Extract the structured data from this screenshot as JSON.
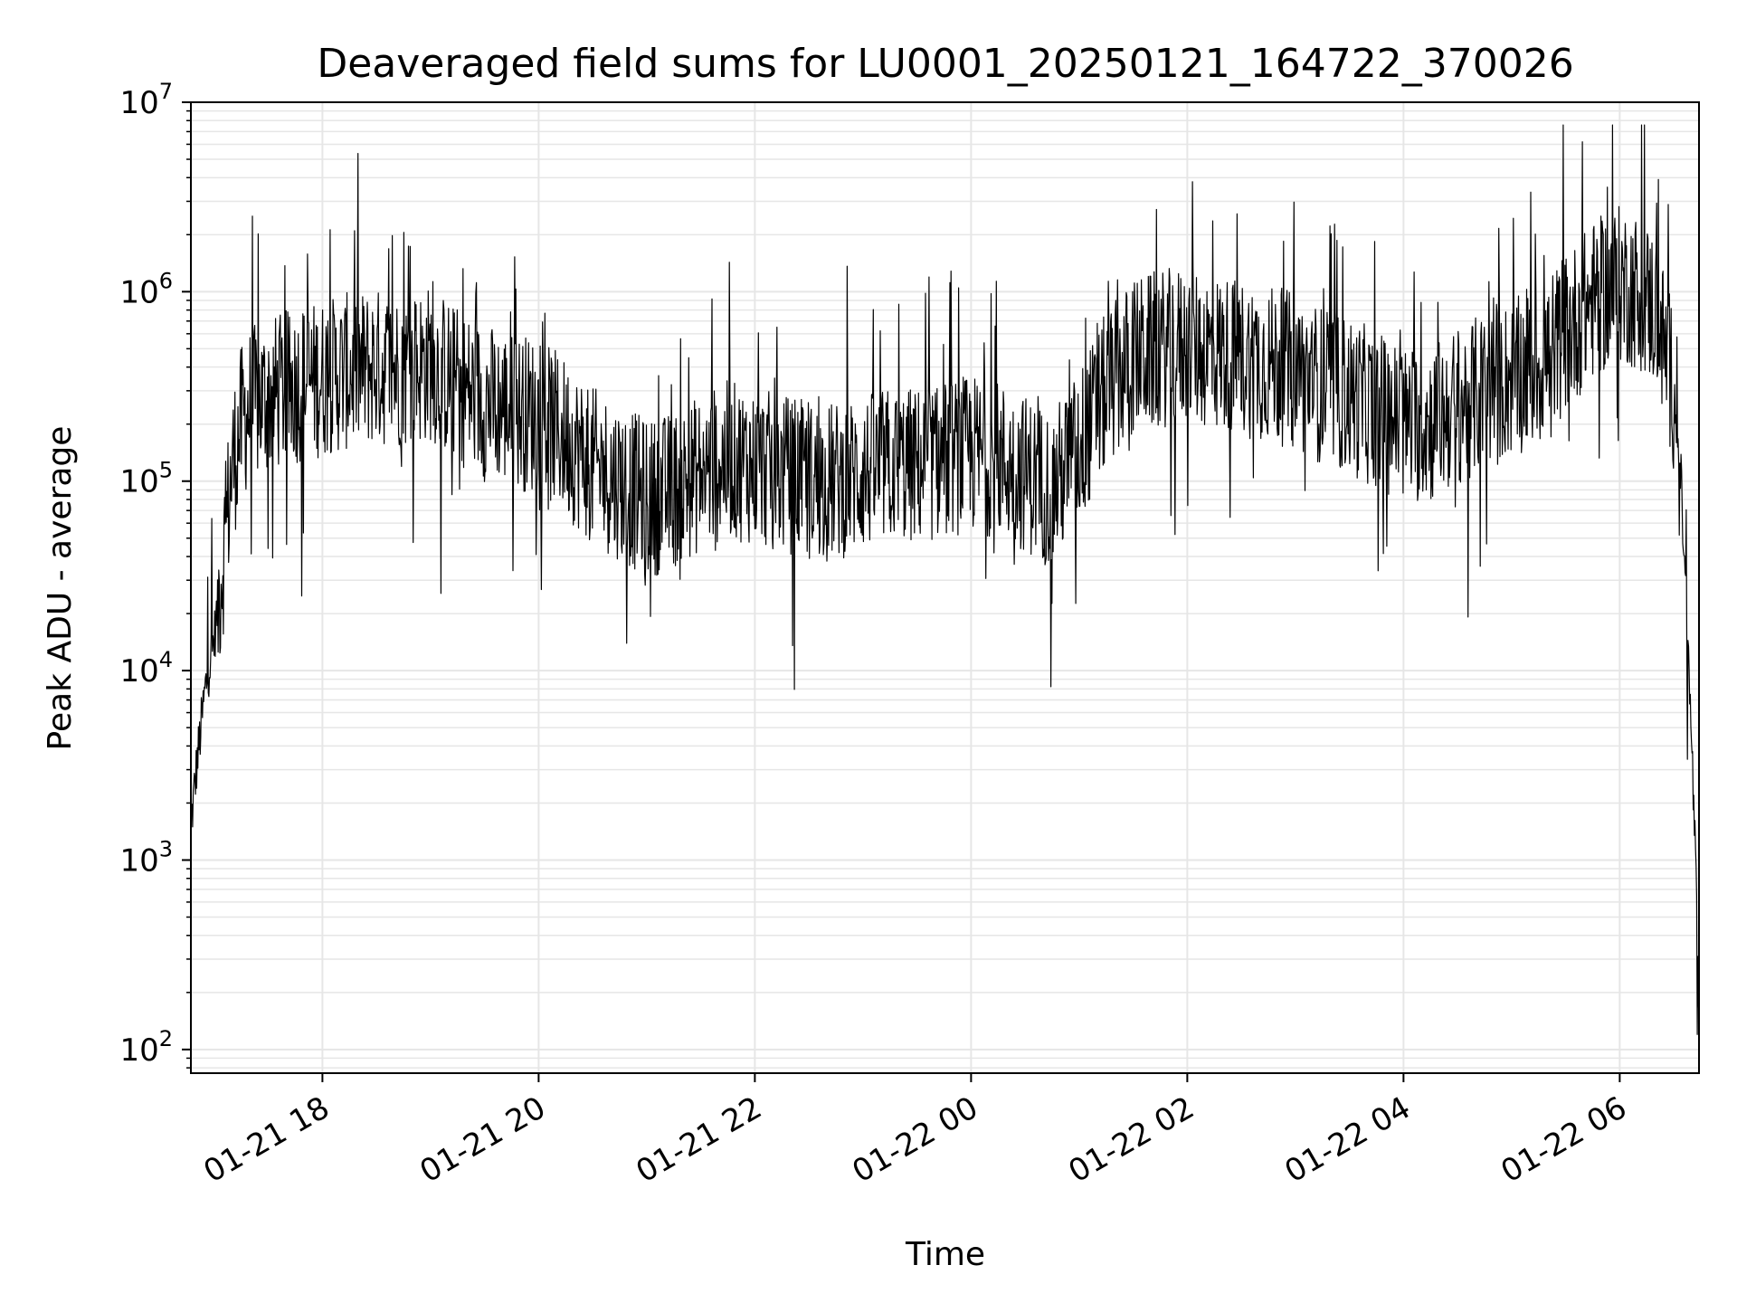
{
  "chart_data": {
    "type": "line",
    "title": "Deaveraged field sums for LU0001_20250121_164722_370026",
    "xlabel": "Time",
    "ylabel": "Peak ADU - average",
    "yscale": "log",
    "ylim": [
      75,
      10000000
    ],
    "xlim": [
      "2025-01-21 16:47",
      "2025-01-22 06:44"
    ],
    "grid": true,
    "line_color": "#000000",
    "grid_color": "#e6e6e6",
    "x_ticks": [
      {
        "value": "2025-01-21 18:00",
        "label": "01-21 18"
      },
      {
        "value": "2025-01-21 20:00",
        "label": "01-21 20"
      },
      {
        "value": "2025-01-21 22:00",
        "label": "01-21 22"
      },
      {
        "value": "2025-01-22 00:00",
        "label": "01-22 00"
      },
      {
        "value": "2025-01-22 02:00",
        "label": "01-22 02"
      },
      {
        "value": "2025-01-22 04:00",
        "label": "01-22 04"
      },
      {
        "value": "2025-01-22 06:00",
        "label": "01-22 06"
      }
    ],
    "y_ticks": [
      {
        "value": 100,
        "base": "10",
        "exp": "2"
      },
      {
        "value": 1000,
        "base": "10",
        "exp": "3"
      },
      {
        "value": 10000,
        "base": "10",
        "exp": "4"
      },
      {
        "value": 100000,
        "base": "10",
        "exp": "5"
      },
      {
        "value": 1000000,
        "base": "10",
        "exp": "6"
      },
      {
        "value": 10000000,
        "base": "10",
        "exp": "7"
      }
    ],
    "series": [
      {
        "x": [
          "2025-01-21 16:47",
          "2025-01-21 16:50",
          "2025-01-21 16:55",
          "2025-01-21 17:00",
          "2025-01-21 17:05",
          "2025-01-21 17:10",
          "2025-01-21 17:15",
          "2025-01-21 17:20",
          "2025-01-21 17:30",
          "2025-01-21 17:45",
          "2025-01-21 18:00",
          "2025-01-21 18:15",
          "2025-01-21 18:30",
          "2025-01-21 18:45",
          "2025-01-21 19:00",
          "2025-01-21 19:15",
          "2025-01-21 19:30",
          "2025-01-21 19:45",
          "2025-01-21 20:00",
          "2025-01-21 20:15",
          "2025-01-21 20:30",
          "2025-01-21 20:45",
          "2025-01-21 21:00",
          "2025-01-21 21:15",
          "2025-01-21 21:30",
          "2025-01-21 21:45",
          "2025-01-21 22:00",
          "2025-01-21 22:15",
          "2025-01-21 22:30",
          "2025-01-21 22:45",
          "2025-01-21 23:00",
          "2025-01-21 23:15",
          "2025-01-21 23:30",
          "2025-01-21 23:45",
          "2025-01-22 00:00",
          "2025-01-22 00:15",
          "2025-01-22 00:30",
          "2025-01-22 00:45",
          "2025-01-22 01:00",
          "2025-01-22 01:15",
          "2025-01-22 01:30",
          "2025-01-22 01:45",
          "2025-01-22 02:00",
          "2025-01-22 02:15",
          "2025-01-22 02:30",
          "2025-01-22 02:45",
          "2025-01-22 03:00",
          "2025-01-22 03:15",
          "2025-01-22 03:30",
          "2025-01-22 03:45",
          "2025-01-22 04:00",
          "2025-01-22 04:15",
          "2025-01-22 04:30",
          "2025-01-22 04:45",
          "2025-01-22 05:00",
          "2025-01-22 05:15",
          "2025-01-22 05:30",
          "2025-01-22 05:45",
          "2025-01-22 06:00",
          "2025-01-22 06:10",
          "2025-01-22 06:20",
          "2025-01-22 06:25",
          "2025-01-22 06:30",
          "2025-01-22 06:34",
          "2025-01-22 06:37",
          "2025-01-22 06:40",
          "2025-01-22 06:42",
          "2025-01-22 06:44"
        ],
        "y": [
          1500,
          3000,
          8000,
          15000,
          40000,
          120000,
          200000,
          250000,
          280000,
          320000,
          350000,
          380000,
          400000,
          380000,
          420000,
          320000,
          260000,
          240000,
          220000,
          170000,
          120000,
          100000,
          80000,
          90000,
          110000,
          130000,
          120000,
          110000,
          100000,
          100000,
          110000,
          120000,
          120000,
          130000,
          140000,
          130000,
          110000,
          90000,
          150000,
          300000,
          450000,
          500000,
          520000,
          480000,
          450000,
          420000,
          380000,
          320000,
          280000,
          240000,
          200000,
          200000,
          250000,
          300000,
          350000,
          400000,
          600000,
          900000,
          1100000,
          1000000,
          800000,
          500000,
          300000,
          100000,
          20000,
          4000,
          1000,
          150
        ]
      }
    ]
  }
}
